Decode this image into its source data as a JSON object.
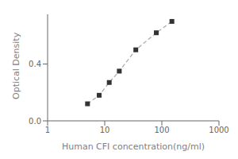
{
  "chart_data": {
    "type": "line",
    "xlabel": "Human CFI concentration(ng/ml)",
    "ylabel": "Optical Density",
    "x": [
      5,
      8,
      12,
      18,
      35,
      80,
      150
    ],
    "values": [
      0.12,
      0.18,
      0.27,
      0.35,
      0.5,
      0.62,
      0.7
    ],
    "xlim": [
      1,
      1000
    ],
    "ylim": [
      0.0,
      0.75
    ],
    "xticks": [
      1,
      10,
      100,
      1000
    ],
    "yticks": [
      {
        "value": 0.0,
        "label": "0.0"
      },
      0.4
    ],
    "log": "x",
    "color": "#aaaaaa",
    "colors": [
      "#333333",
      "#333333",
      "#333333",
      "#333333",
      "#333333",
      "#333333",
      "#333333"
    ],
    "marker": "square",
    "line_style": "dashed",
    "grid": false
  }
}
